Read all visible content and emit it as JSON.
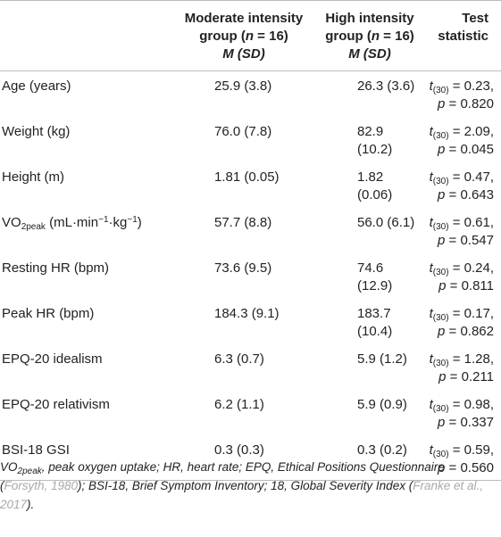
{
  "header": {
    "col1": [
      "Moderate intensity",
      "group (",
      "n",
      " = 16)",
      "M",
      " (",
      "SD",
      ")"
    ],
    "col2": [
      "High intensity",
      "group (",
      "n",
      " = 16)",
      "M",
      " (",
      "SD",
      ")"
    ],
    "col3": [
      "Test",
      "statistic"
    ]
  },
  "rows": [
    {
      "label": "Age (years)",
      "mod": "25.9 (3.8)",
      "high": "26.3 (3.6)",
      "t": "t",
      "df": "(30)",
      "tval": " = 0.23,",
      "p": "p",
      "pval": " = 0.820"
    },
    {
      "label": "Weight (kg)",
      "mod": "76.0 (7.8)",
      "high": "82.9 (10.2)",
      "t": "t",
      "df": "(30)",
      "tval": " = 2.09,",
      "p": "p",
      "pval": " = 0.045"
    },
    {
      "label": "Height (m)",
      "mod": "1.81 (0.05)",
      "high": "1.82 (0.06)",
      "t": "t",
      "df": "(30)",
      "tval": " = 0.47,",
      "p": "p",
      "pval": " = 0.643"
    },
    {
      "label_a": "VO",
      "label_sub": "2peak",
      "label_b": " (mL·min",
      "label_sup1": "−1",
      "label_c": "·kg",
      "label_sup2": "−1",
      "label_d": ")",
      "mod": "57.7 (8.8)",
      "high": "56.0 (6.1)",
      "t": "t",
      "df": "(30)",
      "tval": " = 0.61,",
      "p": "p",
      "pval": " = 0.547"
    },
    {
      "label": "Resting HR (bpm)",
      "mod": "73.6 (9.5)",
      "high": "74.6 (12.9)",
      "t": "t",
      "df": "(30)",
      "tval": " = 0.24,",
      "p": "p",
      "pval": " = 0.811"
    },
    {
      "label": "Peak HR (bpm)",
      "mod": "184.3 (9.1)",
      "high": "183.7 (10.4)",
      "t": "t",
      "df": "(30)",
      "tval": " = 0.17,",
      "p": "p",
      "pval": " = 0.862"
    },
    {
      "label": "EPQ-20 idealism",
      "mod": "6.3 (0.7)",
      "high": "5.9 (1.2)",
      "t": "t",
      "df": "(30)",
      "tval": " = 1.28,",
      "p": "p",
      "pval": " = 0.211"
    },
    {
      "label": "EPQ-20 relativism",
      "mod": "6.2 (1.1)",
      "high": "5.9 (0.9)",
      "t": "t",
      "df": "(30)",
      "tval": " = 0.98,",
      "p": "p",
      "pval": " = 0.337"
    },
    {
      "label": "BSI-18 GSI",
      "mod": "0.3 (0.3)",
      "high": "0.3 (0.2)",
      "t": "t",
      "df": "(30)",
      "tval": " = 0.59,",
      "p": "p",
      "pval": " = 0.560"
    }
  ],
  "note": {
    "vo": "VO",
    "vo_sub": "2peak",
    "part1": ", peak oxygen uptake; HR, heart rate; EPQ, Ethical Positions Questionnaire (",
    "ref1": "Forsyth, 1980",
    "part2": "); BSI-18, Brief Symptom Inventory; 18, Global Severity Index (",
    "ref2": "Franke et al., 2017",
    "part3": ")."
  }
}
